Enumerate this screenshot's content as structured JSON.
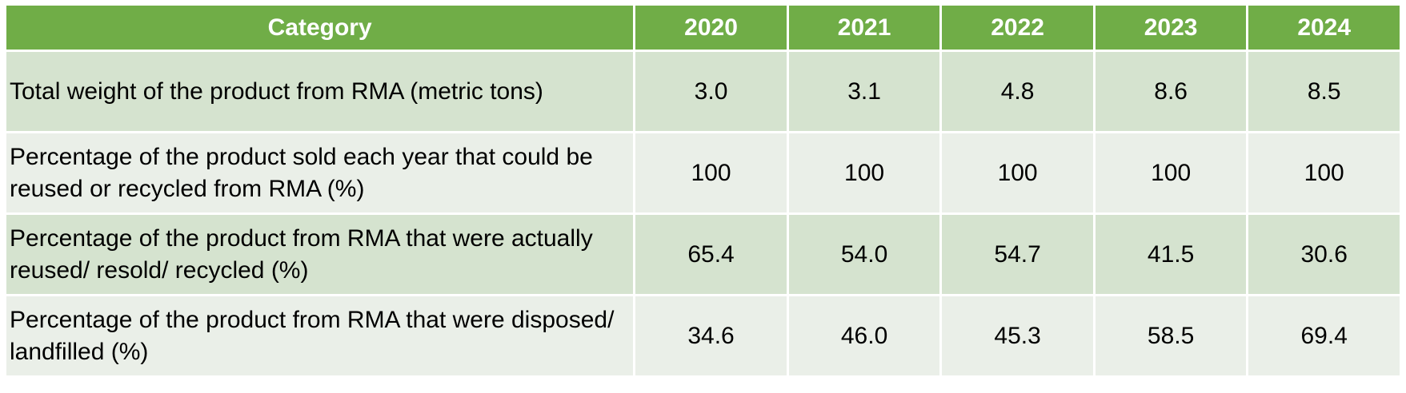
{
  "table": {
    "headers": [
      "Category",
      "2020",
      "2021",
      "2022",
      "2023",
      "2024"
    ],
    "rows": [
      {
        "label": "Total weight of the product from RMA (metric tons)",
        "values": [
          "3.0",
          "3.1",
          "4.8",
          "8.6",
          "8.5"
        ]
      },
      {
        "label": "Percentage of the product sold each year that could be reused or recycled from RMA (%)",
        "values": [
          "100",
          "100",
          "100",
          "100",
          "100"
        ]
      },
      {
        "label": "Percentage of the product from RMA that were actually reused/ resold/ recycled (%)",
        "values": [
          "65.4",
          "54.0",
          "54.7",
          "41.5",
          "30.6"
        ]
      },
      {
        "label": "Percentage of the product from RMA that were disposed/ landfilled (%)",
        "values": [
          "34.6",
          "46.0",
          "45.3",
          "58.5",
          "69.4"
        ]
      }
    ]
  },
  "colors": {
    "header_bg": "#70ad47",
    "row_odd_bg": "#d5e3cf",
    "row_even_bg": "#eaefe8",
    "header_text": "#ffffff"
  }
}
